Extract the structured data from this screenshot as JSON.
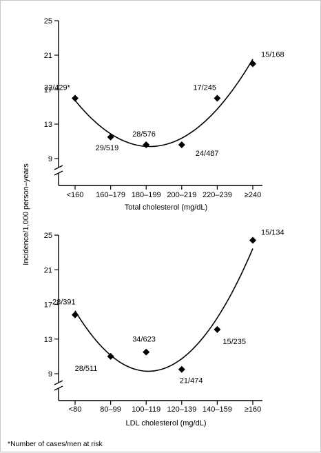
{
  "footnote": "*Number of cases/men at risk",
  "chart_data": [
    {
      "type": "scatter",
      "title": "",
      "xlabel": "Total cholesterol (mg/dL)",
      "ylabel": "Incidence/1,000 person–years",
      "ylim": [
        9,
        25
      ],
      "yticks": [
        "25",
        "21",
        "17",
        "13",
        "9"
      ],
      "categories": [
        "<160",
        "160–179",
        "180–199",
        "200–219",
        "220–239",
        "≥240"
      ],
      "values": [
        16,
        11.5,
        10.6,
        10.6,
        16,
        20
      ],
      "labels": [
        "32/429*",
        "29/519",
        "28/576",
        "24/487",
        "17/245",
        "15/168"
      ],
      "fit_curve": "quadratic",
      "y_axis_break": true,
      "grid": false
    },
    {
      "type": "scatter",
      "title": "",
      "xlabel": "LDL cholesterol (mg/dL)",
      "ylabel": "Incidence/1,000 person–years",
      "ylim": [
        9,
        25
      ],
      "yticks": [
        "25",
        "21",
        "17",
        "13",
        "9"
      ],
      "categories": [
        "<80",
        "80–99",
        "100–119",
        "120–139",
        "140–159",
        "≥160"
      ],
      "values": [
        15.8,
        11,
        11.5,
        9.5,
        14.1,
        24.4
      ],
      "labels": [
        "28/391",
        "28/511",
        "34/623",
        "21/474",
        "15/235",
        "15/134"
      ],
      "fit_curve": "quadratic",
      "y_axis_break": true,
      "grid": false
    }
  ],
  "shared_ylabel": "Incidence/1,000 person–years"
}
